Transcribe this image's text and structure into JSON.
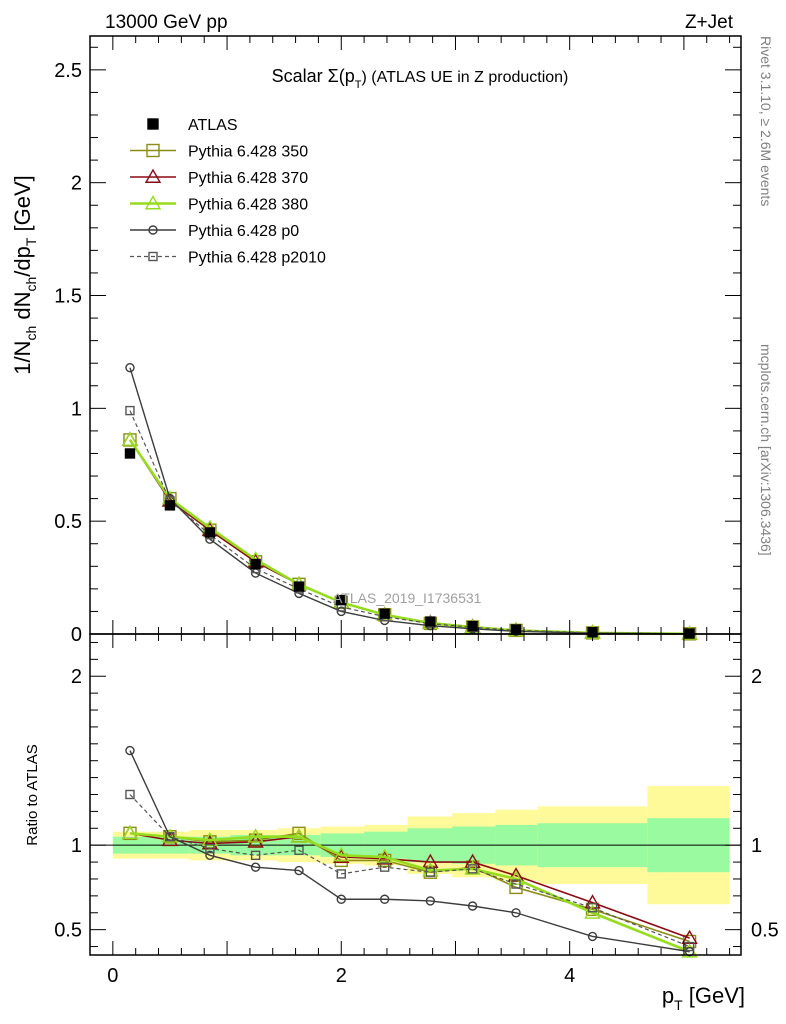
{
  "header": {
    "left": "13000 GeV pp",
    "right": "Z+Jet",
    "side_rivet": "Rivet 3.1.10, ≥ 2.6M events",
    "side_mcplots": "mcplots.cern.ch [arXiv:1306.3436]",
    "watermark": "ATLAS_2019_I1736531"
  },
  "chart_data": [
    {
      "type": "line",
      "panel": "main",
      "title": "Scalar Σ(p_T) (ATLAS UE in Z production)",
      "title_parts": {
        "pre": "Scalar Σ(p",
        "sub": "T",
        "post": ") (ATLAS UE in Z production)"
      },
      "xlabel": "p_T [GeV]",
      "ylabel": "1/N_ch dN_ch/dp_T [GeV]",
      "xlim": [
        -0.2,
        5.5
      ],
      "ylim": [
        0,
        2.65
      ],
      "x_ticks": [
        "0",
        "2",
        "4"
      ],
      "y_ticks": [
        "0",
        "0.5",
        "1",
        "1.5",
        "2",
        "2.5"
      ],
      "x": [
        0.15,
        0.5,
        0.85,
        1.25,
        1.63,
        2.0,
        2.38,
        2.78,
        3.15,
        3.53,
        4.2,
        5.05
      ],
      "series": [
        {
          "name": "ATLAS",
          "values": [
            0.8,
            0.57,
            0.45,
            0.31,
            0.21,
            0.15,
            0.09,
            0.055,
            0.035,
            0.02,
            0.008,
            0.002
          ]
        },
        {
          "name": "Pythia 6.428 350",
          "values": [
            0.86,
            0.6,
            0.46,
            0.32,
            0.22,
            0.14,
            0.085,
            0.047,
            0.031,
            0.016,
            0.005,
            0.0008
          ]
        },
        {
          "name": "Pythia 6.428 370",
          "values": [
            0.86,
            0.59,
            0.46,
            0.32,
            0.22,
            0.14,
            0.085,
            0.05,
            0.032,
            0.017,
            0.0055,
            0.0009
          ]
        },
        {
          "name": "Pythia 6.428 380",
          "values": [
            0.86,
            0.6,
            0.47,
            0.33,
            0.22,
            0.14,
            0.085,
            0.048,
            0.03,
            0.016,
            0.005,
            0.0008
          ]
        },
        {
          "name": "Pythia 6.428 p0",
          "values": [
            1.18,
            0.6,
            0.42,
            0.27,
            0.18,
            0.1,
            0.06,
            0.037,
            0.023,
            0.012,
            0.0037,
            0.0007
          ]
        },
        {
          "name": "Pythia 6.428 p2010",
          "values": [
            0.99,
            0.59,
            0.44,
            0.29,
            0.2,
            0.12,
            0.077,
            0.046,
            0.03,
            0.016,
            0.005,
            0.0008
          ]
        }
      ],
      "colors": {
        "ATLAS": "#000000",
        "Pythia 6.428 350": "#8c8c14",
        "Pythia 6.428 370": "#8b0a14",
        "Pythia 6.428 380": "#96dc1e",
        "Pythia 6.428 p0": "#3c3c3c",
        "Pythia 6.428 p2010": "#555555"
      },
      "legend": "top-left"
    },
    {
      "type": "line",
      "panel": "ratio",
      "ylabel": "Ratio to ATLAS",
      "ylim": [
        0.35,
        2.25
      ],
      "y_ticks": [
        "0.5",
        "1",
        "2"
      ],
      "bands": {
        "edges": [
          0.0,
          0.33,
          0.67,
          1.03,
          1.44,
          1.82,
          2.2,
          2.58,
          2.97,
          3.35,
          3.72,
          4.68,
          5.4
        ],
        "yellow_lo": [
          0.92,
          0.92,
          0.91,
          0.91,
          0.9,
          0.89,
          0.88,
          0.83,
          0.81,
          0.79,
          0.77,
          0.65
        ],
        "yellow_hi": [
          1.08,
          1.08,
          1.09,
          1.09,
          1.1,
          1.11,
          1.12,
          1.17,
          1.19,
          1.21,
          1.23,
          1.35
        ],
        "green_lo": [
          0.95,
          0.95,
          0.95,
          0.94,
          0.94,
          0.93,
          0.92,
          0.9,
          0.89,
          0.88,
          0.87,
          0.84
        ],
        "green_hi": [
          1.05,
          1.05,
          1.05,
          1.06,
          1.06,
          1.07,
          1.08,
          1.1,
          1.11,
          1.12,
          1.13,
          1.16
        ],
        "yellow_color": "#fffa99",
        "green_color": "#99fa9f"
      },
      "series": [
        {
          "name": "Pythia 6.428 350",
          "values": [
            1.07,
            1.05,
            1.02,
            1.03,
            1.07,
            0.91,
            0.91,
            0.84,
            0.87,
            0.75,
            0.62,
            0.43
          ]
        },
        {
          "name": "Pythia 6.428 370",
          "values": [
            1.07,
            1.03,
            1.01,
            1.02,
            1.05,
            0.93,
            0.92,
            0.9,
            0.9,
            0.82,
            0.66,
            0.45
          ]
        },
        {
          "name": "Pythia 6.428 380",
          "values": [
            1.07,
            1.05,
            1.03,
            1.05,
            1.05,
            0.94,
            0.93,
            0.85,
            0.86,
            0.8,
            0.6,
            0.37
          ]
        },
        {
          "name": "Pythia 6.428 p0",
          "values": [
            1.56,
            1.05,
            0.94,
            0.87,
            0.85,
            0.68,
            0.68,
            0.67,
            0.64,
            0.6,
            0.46,
            0.37
          ]
        },
        {
          "name": "Pythia 6.428 p2010",
          "values": [
            1.3,
            1.05,
            0.98,
            0.94,
            0.97,
            0.83,
            0.87,
            0.84,
            0.86,
            0.77,
            0.63,
            0.4
          ]
        }
      ]
    }
  ]
}
